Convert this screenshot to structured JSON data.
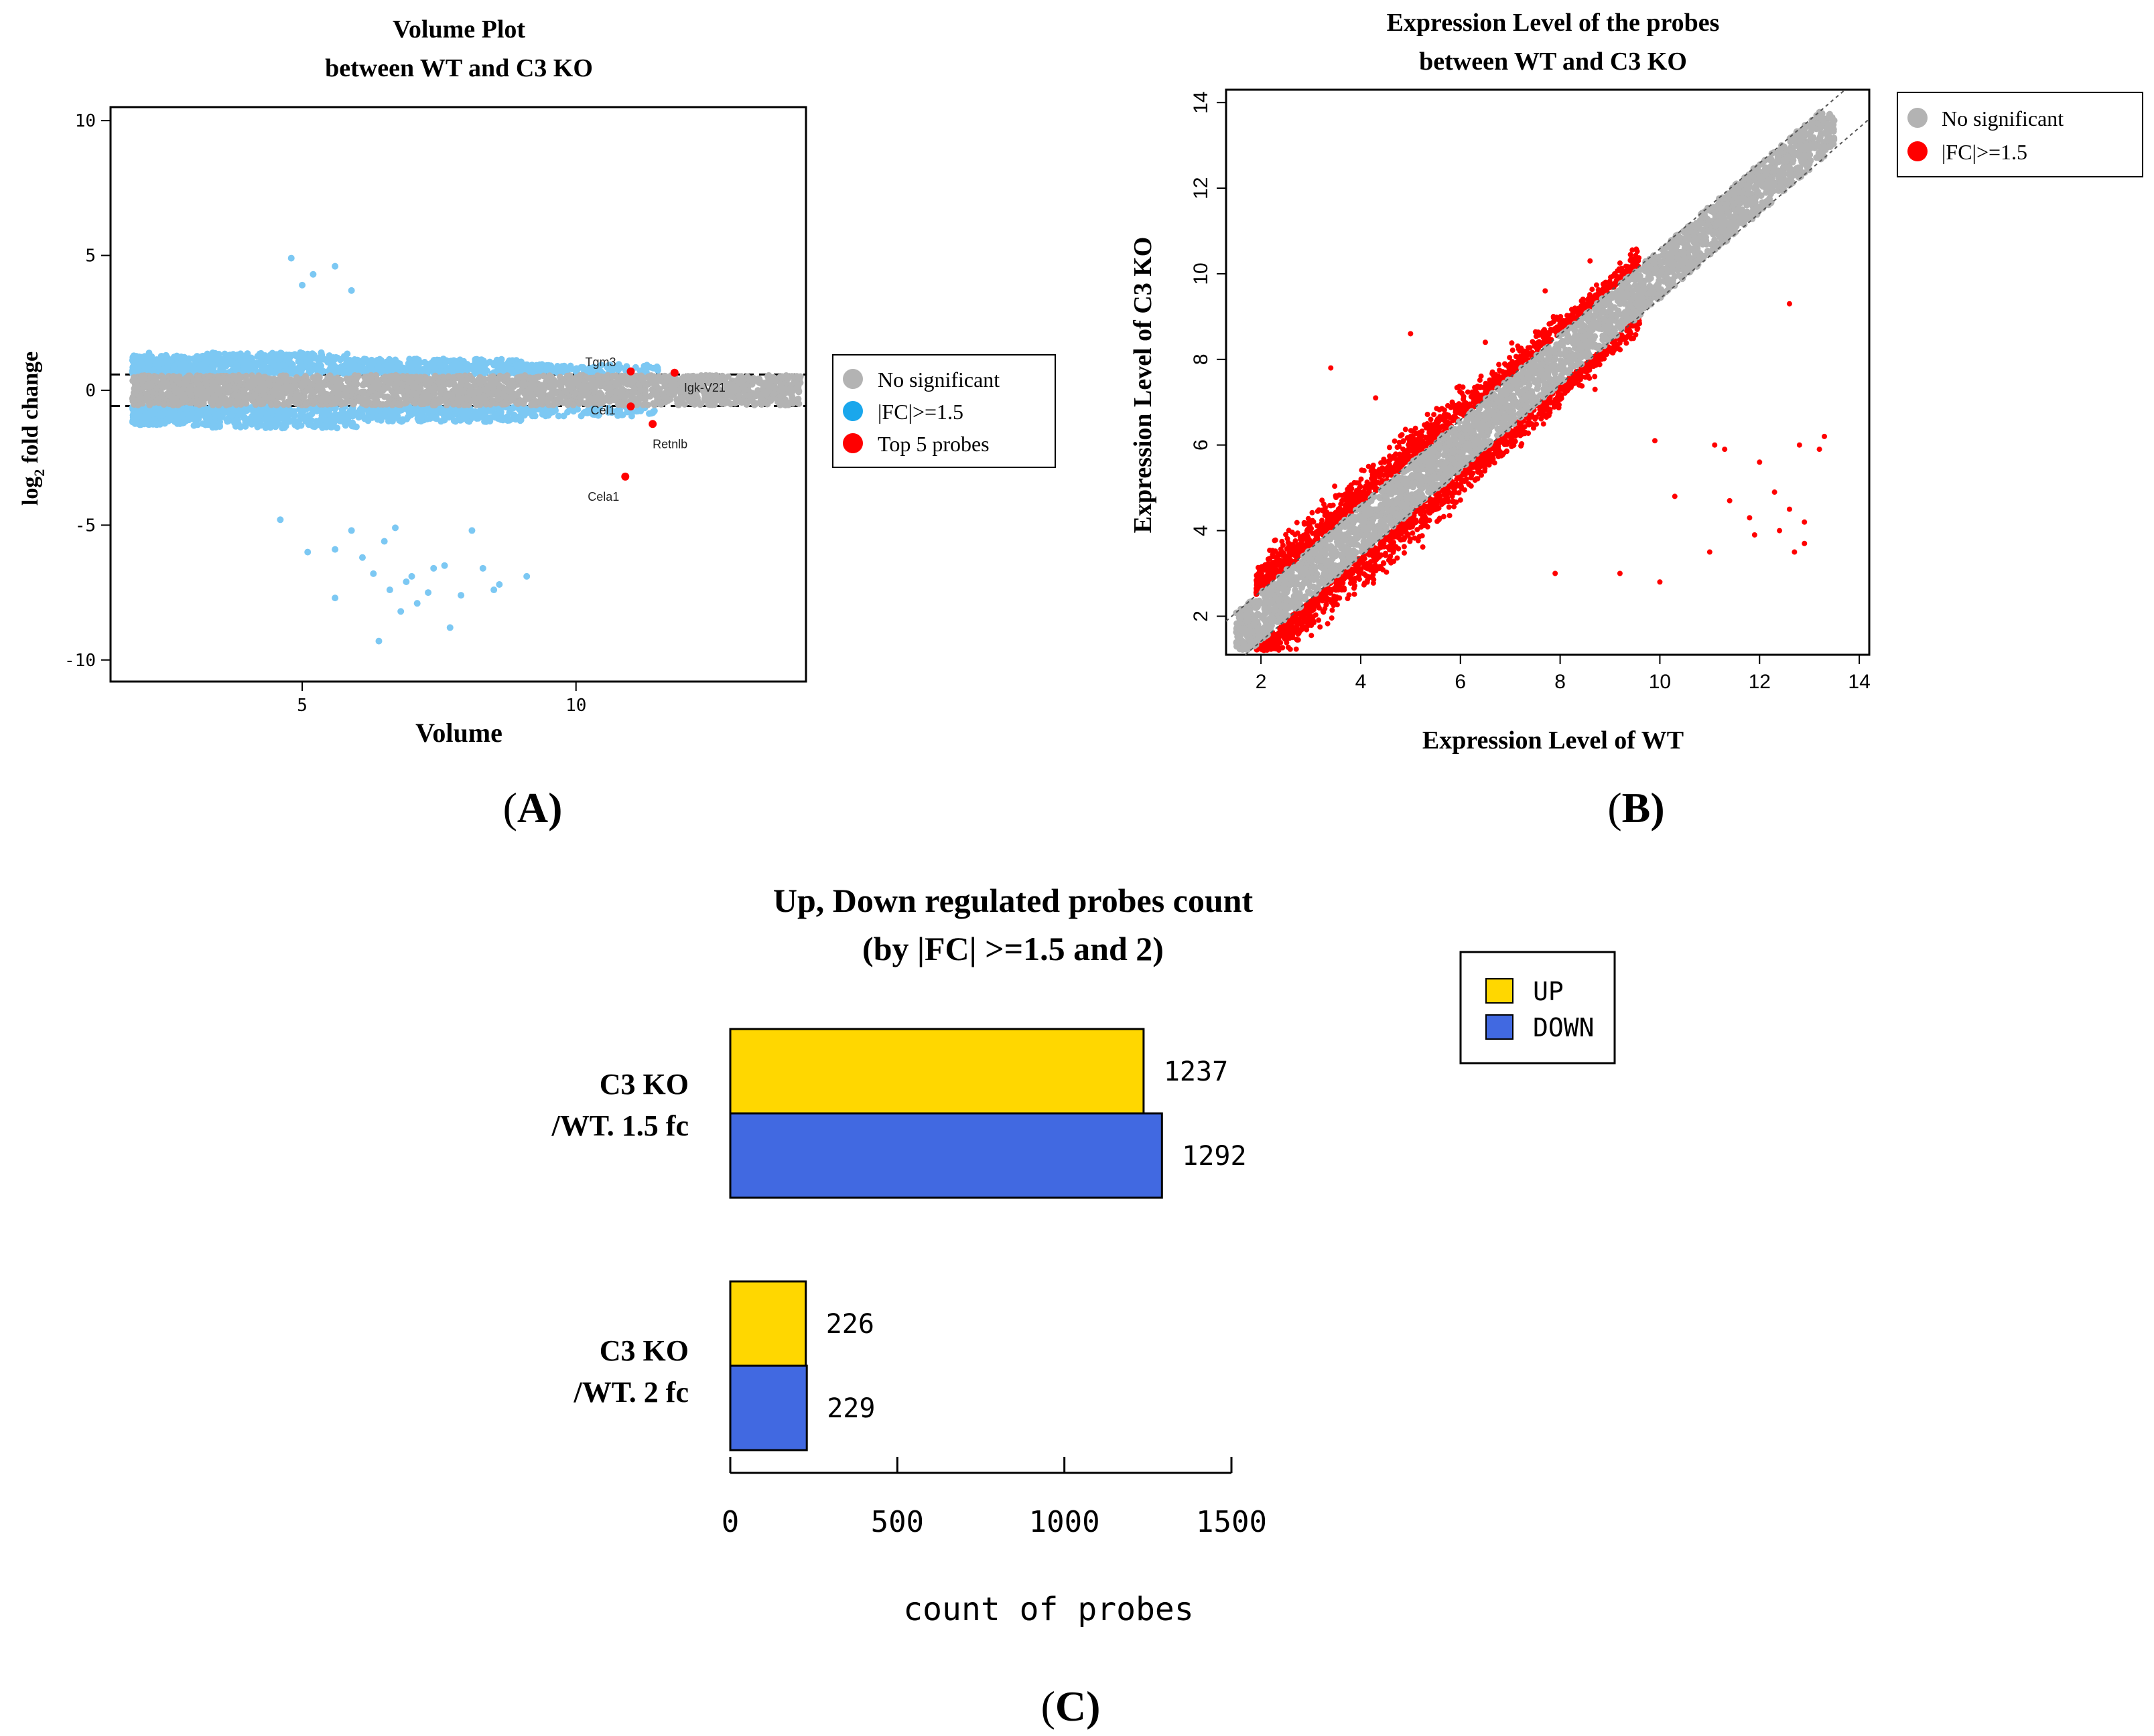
{
  "colors": {
    "grey": "#b3b3b3",
    "blue": "#7cc8f3",
    "red": "#ff0000",
    "up": "#ffd700",
    "down": "#4169e1"
  },
  "chart_data": [
    {
      "type": "scatter",
      "panel_label": "(A)",
      "title_line1": "Volume Plot",
      "title_line2": "between WT and C3 KO",
      "xlabel": "Volume",
      "ylabel": "log",
      "ylabel_sub": "2",
      "ylabel_rest": " fold change",
      "xlim": [
        1.5,
        14.2
      ],
      "ylim": [
        -10.8,
        10.5
      ],
      "xticks": [
        5,
        10
      ],
      "yticks": [
        -10,
        -5,
        0,
        5,
        10
      ],
      "threshold_lines": [
        0.585,
        -0.585
      ],
      "legend": [
        "No significant",
        "|FC|>=1.5",
        "Top 5 probes"
      ],
      "labeled_points": [
        {
          "label": "Tgm3",
          "x": 11.0,
          "y": 0.7
        },
        {
          "label": "Igk-V21",
          "x": 11.8,
          "y": 0.65
        },
        {
          "label": "Cel1",
          "x": 11.0,
          "y": -0.6
        },
        {
          "label": "Retnlb",
          "x": 11.4,
          "y": -1.25
        },
        {
          "label": "Cela1",
          "x": 10.9,
          "y": -3.2
        }
      ],
      "outlier_points": [
        [
          4.8,
          4.9
        ],
        [
          5.2,
          4.3
        ],
        [
          5.6,
          4.6
        ],
        [
          5.0,
          3.9
        ],
        [
          5.9,
          3.7
        ],
        [
          4.6,
          -4.8
        ],
        [
          5.1,
          -6.0
        ],
        [
          5.6,
          -5.9
        ],
        [
          5.6,
          -7.7
        ],
        [
          6.1,
          -6.2
        ],
        [
          6.5,
          -5.6
        ],
        [
          6.3,
          -6.8
        ],
        [
          6.6,
          -7.4
        ],
        [
          6.9,
          -7.1
        ],
        [
          6.8,
          -8.2
        ],
        [
          7.1,
          -7.9
        ],
        [
          7.3,
          -7.5
        ],
        [
          7.6,
          -6.5
        ],
        [
          7.9,
          -7.6
        ],
        [
          7.4,
          -6.6
        ],
        [
          6.4,
          -9.3
        ],
        [
          8.1,
          -5.2
        ],
        [
          8.5,
          -7.4
        ],
        [
          8.6,
          -7.2
        ],
        [
          9.1,
          -6.9
        ],
        [
          6.7,
          -5.1
        ],
        [
          7.7,
          -8.8
        ],
        [
          7.0,
          -6.9
        ],
        [
          8.3,
          -6.6
        ],
        [
          5.9,
          -5.2
        ]
      ]
    },
    {
      "type": "scatter",
      "panel_label": "(B)",
      "title_line1": "Expression Level of the probes",
      "title_line2": "between WT and C3 KO",
      "xlabel": "Expression Level of WT",
      "ylabel": "Expression Level of C3 KO",
      "xlim": [
        1.3,
        14.2
      ],
      "ylim": [
        1.1,
        14.3
      ],
      "xticks": [
        2,
        4,
        6,
        8,
        10,
        12,
        14
      ],
      "yticks": [
        2,
        4,
        6,
        8,
        10,
        12,
        14
      ],
      "diagonal_offsets": [
        0.585,
        -0.585
      ],
      "legend": [
        "No significant",
        "|FC|>=1.5"
      ],
      "outlier_points": [
        [
          8.7,
          7.3
        ],
        [
          9.9,
          6.1
        ],
        [
          10.3,
          4.8
        ],
        [
          11.1,
          6.0
        ],
        [
          11.3,
          5.9
        ],
        [
          12.0,
          5.6
        ],
        [
          11.4,
          4.7
        ],
        [
          12.3,
          4.9
        ],
        [
          11.8,
          4.3
        ],
        [
          12.6,
          4.5
        ],
        [
          12.9,
          4.2
        ],
        [
          13.2,
          5.9
        ],
        [
          13.3,
          6.2
        ],
        [
          12.8,
          6.0
        ],
        [
          9.2,
          3.0
        ],
        [
          10.0,
          2.8
        ],
        [
          11.0,
          3.5
        ],
        [
          11.9,
          3.9
        ],
        [
          12.4,
          4.0
        ],
        [
          12.7,
          3.5
        ],
        [
          12.9,
          3.7
        ],
        [
          7.9,
          3.0
        ],
        [
          6.5,
          8.4
        ],
        [
          5.0,
          8.6
        ],
        [
          3.4,
          7.8
        ],
        [
          4.3,
          7.1
        ],
        [
          7.7,
          9.6
        ],
        [
          8.6,
          10.3
        ],
        [
          12.6,
          9.3
        ]
      ]
    },
    {
      "type": "bar",
      "orientation": "horizontal",
      "panel_label": "(C)",
      "title_line1": "Up, Down regulated probes count",
      "title_line2": "(by |FC| >=1.5 and 2)",
      "categories": [
        {
          "line1": "C3 KO",
          "line2": "/WT. 1.5 fc"
        },
        {
          "line1": "C3 KO",
          "line2": "/WT. 2 fc"
        }
      ],
      "series": [
        {
          "name": "UP",
          "values": [
            1237,
            226
          ],
          "labels": [
            "1237",
            "226"
          ]
        },
        {
          "name": "DOWN",
          "values": [
            1292,
            229
          ],
          "labels": [
            "1292",
            "229"
          ]
        }
      ],
      "xlim": [
        0,
        1500
      ],
      "xticks": [
        0,
        500,
        1000,
        1500
      ],
      "xlabel": "count of probes",
      "legend_position": "top-right"
    }
  ]
}
